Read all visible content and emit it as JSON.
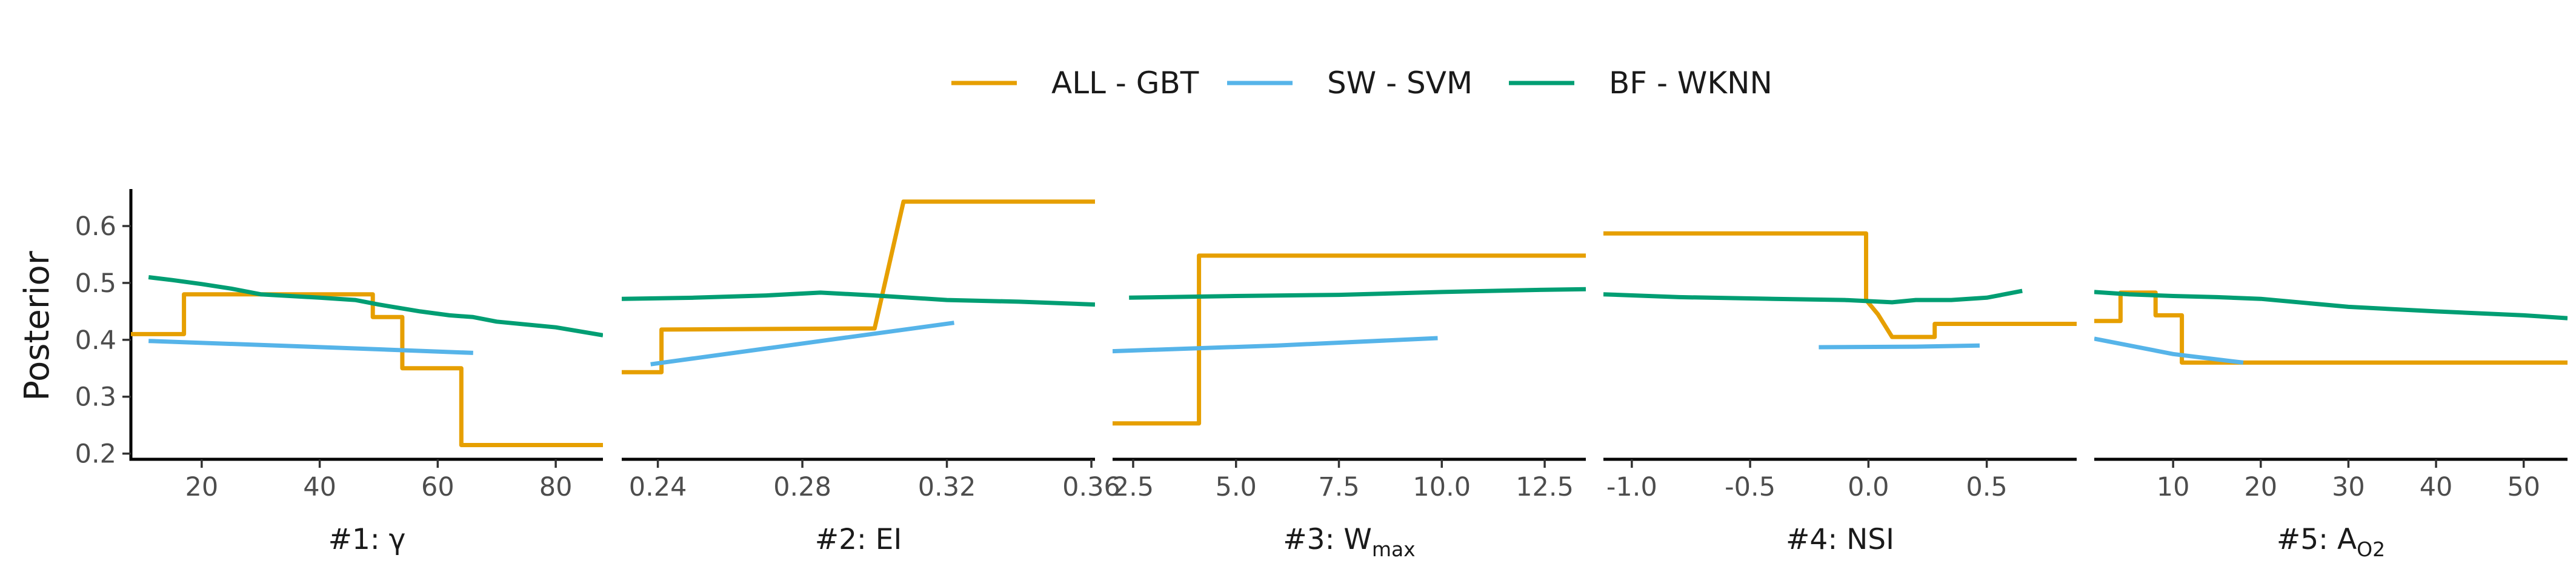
{
  "chart_data": {
    "type": "line",
    "ylabel": "Posterior",
    "ylim": [
      0.19,
      0.665
    ],
    "yticks": [
      0.2,
      0.3,
      0.4,
      0.5,
      0.6
    ],
    "ytick_labels": [
      "0.2",
      "0.3",
      "0.4",
      "0.5",
      "0.6"
    ],
    "legend_position": "top-center",
    "legend": [
      {
        "name": "ALL - GBT",
        "color": "#E69F00"
      },
      {
        "name": "SW - SVM",
        "color": "#56B4E9"
      },
      {
        "name": "BF - WKNN",
        "color": "#009E73"
      }
    ],
    "panels": [
      {
        "xlabel_main": "#1: γ",
        "xlabel_sub": "",
        "xlim": [
          8,
          88
        ],
        "xticks": [
          20,
          40,
          60,
          80
        ],
        "xtick_labels": [
          "20",
          "40",
          "60",
          "80"
        ],
        "series": [
          {
            "name": "ALL - GBT",
            "points": [
              [
                8,
                0.41
              ],
              [
                17,
                0.41
              ],
              [
                17,
                0.48
              ],
              [
                49,
                0.48
              ],
              [
                49,
                0.44
              ],
              [
                54,
                0.44
              ],
              [
                54,
                0.35
              ],
              [
                64,
                0.35
              ],
              [
                64,
                0.215
              ],
              [
                88,
                0.215
              ]
            ]
          },
          {
            "name": "SW - SVM",
            "points": [
              [
                11,
                0.398
              ],
              [
                38,
                0.388
              ],
              [
                66,
                0.377
              ]
            ]
          },
          {
            "name": "BF - WKNN",
            "points": [
              [
                11,
                0.51
              ],
              [
                15,
                0.505
              ],
              [
                20,
                0.498
              ],
              [
                25,
                0.49
              ],
              [
                30,
                0.48
              ],
              [
                40,
                0.474
              ],
              [
                46,
                0.47
              ],
              [
                50,
                0.462
              ],
              [
                57,
                0.45
              ],
              [
                62,
                0.443
              ],
              [
                66,
                0.44
              ],
              [
                70,
                0.432
              ],
              [
                80,
                0.422
              ],
              [
                88,
                0.408
              ]
            ]
          }
        ]
      },
      {
        "xlabel_main": "#2: EI",
        "xlabel_sub": "",
        "xlim": [
          0.23,
          0.361
        ],
        "xticks": [
          0.24,
          0.28,
          0.32,
          0.36
        ],
        "xtick_labels": [
          "0.24",
          "0.28",
          "0.32",
          "0.36"
        ],
        "series": [
          {
            "name": "ALL - GBT",
            "points": [
              [
                0.23,
                0.343
              ],
              [
                0.241,
                0.343
              ],
              [
                0.241,
                0.418
              ],
              [
                0.3,
                0.42
              ],
              [
                0.308,
                0.643
              ],
              [
                0.361,
                0.643
              ]
            ]
          },
          {
            "name": "SW - SVM",
            "points": [
              [
                0.238,
                0.357
              ],
              [
                0.322,
                0.43
              ]
            ]
          },
          {
            "name": "BF - WKNN",
            "points": [
              [
                0.23,
                0.472
              ],
              [
                0.25,
                0.474
              ],
              [
                0.27,
                0.478
              ],
              [
                0.285,
                0.483
              ],
              [
                0.3,
                0.478
              ],
              [
                0.32,
                0.47
              ],
              [
                0.34,
                0.467
              ],
              [
                0.361,
                0.462
              ]
            ]
          }
        ]
      },
      {
        "xlabel_main": "#3: W",
        "xlabel_sub": "max",
        "xlim": [
          2.0,
          13.5
        ],
        "xticks": [
          2.5,
          5.0,
          7.5,
          10.0,
          12.5
        ],
        "xtick_labels": [
          "2.5",
          "5.0",
          "7.5",
          "10.0",
          "12.5"
        ],
        "series": [
          {
            "name": "ALL - GBT",
            "points": [
              [
                2.0,
                0.253
              ],
              [
                4.1,
                0.253
              ],
              [
                4.1,
                0.548
              ],
              [
                13.5,
                0.548
              ]
            ]
          },
          {
            "name": "SW - SVM",
            "points": [
              [
                2.0,
                0.38
              ],
              [
                6.0,
                0.39
              ],
              [
                9.9,
                0.403
              ]
            ]
          },
          {
            "name": "BF - WKNN",
            "points": [
              [
                2.4,
                0.474
              ],
              [
                5.0,
                0.477
              ],
              [
                7.5,
                0.479
              ],
              [
                10.0,
                0.484
              ],
              [
                12.5,
                0.488
              ],
              [
                13.5,
                0.489
              ]
            ]
          }
        ]
      },
      {
        "xlabel_main": "#4: NSI",
        "xlabel_sub": "",
        "xlim": [
          -1.12,
          0.88
        ],
        "xticks": [
          -1.0,
          -0.5,
          0.0,
          0.5
        ],
        "xtick_labels": [
          "-1.0",
          "-0.5",
          "0.0",
          "0.5"
        ],
        "series": [
          {
            "name": "ALL - GBT",
            "points": [
              [
                -1.12,
                0.587
              ],
              [
                -0.01,
                0.587
              ],
              [
                -0.01,
                0.47
              ],
              [
                0.04,
                0.445
              ],
              [
                0.1,
                0.405
              ],
              [
                0.28,
                0.405
              ],
              [
                0.28,
                0.428
              ],
              [
                0.88,
                0.428
              ]
            ]
          },
          {
            "name": "SW - SVM",
            "points": [
              [
                -0.21,
                0.387
              ],
              [
                0.2,
                0.388
              ],
              [
                0.47,
                0.39
              ]
            ]
          },
          {
            "name": "BF - WKNN",
            "points": [
              [
                -1.12,
                0.48
              ],
              [
                -0.8,
                0.475
              ],
              [
                -0.4,
                0.472
              ],
              [
                -0.1,
                0.47
              ],
              [
                0.1,
                0.466
              ],
              [
                0.2,
                0.47
              ],
              [
                0.35,
                0.47
              ],
              [
                0.5,
                0.474
              ],
              [
                0.65,
                0.486
              ]
            ]
          }
        ]
      },
      {
        "xlabel_main": "#5: A",
        "xlabel_sub": "O2",
        "xlim": [
          1,
          55
        ],
        "xticks": [
          10,
          20,
          30,
          40,
          50
        ],
        "xtick_labels": [
          "10",
          "20",
          "30",
          "40",
          "50"
        ],
        "series": [
          {
            "name": "ALL - GBT",
            "points": [
              [
                1,
                0.433
              ],
              [
                4,
                0.433
              ],
              [
                4,
                0.483
              ],
              [
                8,
                0.483
              ],
              [
                8,
                0.443
              ],
              [
                11,
                0.443
              ],
              [
                11,
                0.36
              ],
              [
                55,
                0.36
              ]
            ]
          },
          {
            "name": "SW - SVM",
            "points": [
              [
                1,
                0.402
              ],
              [
                10,
                0.375
              ],
              [
                18,
                0.36
              ]
            ]
          },
          {
            "name": "BF - WKNN",
            "points": [
              [
                1,
                0.484
              ],
              [
                5,
                0.48
              ],
              [
                10,
                0.477
              ],
              [
                15,
                0.475
              ],
              [
                20,
                0.472
              ],
              [
                30,
                0.458
              ],
              [
                40,
                0.45
              ],
              [
                50,
                0.443
              ],
              [
                55,
                0.438
              ]
            ]
          }
        ]
      }
    ]
  }
}
